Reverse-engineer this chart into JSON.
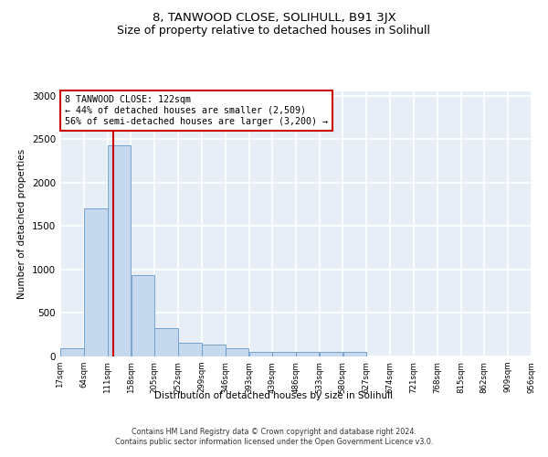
{
  "title": "8, TANWOOD CLOSE, SOLIHULL, B91 3JX",
  "subtitle": "Size of property relative to detached houses in Solihull",
  "xlabel": "Distribution of detached houses by size in Solihull",
  "ylabel": "Number of detached properties",
  "footer_line1": "Contains HM Land Registry data © Crown copyright and database right 2024.",
  "footer_line2": "Contains public sector information licensed under the Open Government Licence v3.0.",
  "bar_color": "#c5d8ee",
  "bar_edge_color": "#6699cc",
  "background_color": "#e8eef5",
  "grid_color": "#ffffff",
  "annotation_box_color": "#cc0000",
  "annotation_line1": "8 TANWOOD CLOSE: 122sqm",
  "annotation_line2": "← 44% of detached houses are smaller (2,509)",
  "annotation_line3": "56% of semi-detached houses are larger (3,200) →",
  "vline_x": 122,
  "vline_color": "#cc0000",
  "bin_edges": [
    17,
    64,
    111,
    158,
    205,
    252,
    299,
    346,
    393,
    439,
    486,
    533,
    580,
    627,
    674,
    721,
    768,
    815,
    862,
    909,
    956
  ],
  "bar_heights": [
    95,
    1700,
    2430,
    940,
    330,
    155,
    140,
    95,
    50,
    50,
    50,
    50,
    50,
    0,
    0,
    0,
    0,
    0,
    0,
    0
  ],
  "ylim": [
    0,
    3050
  ],
  "yticks": [
    0,
    500,
    1000,
    1500,
    2000,
    2500,
    3000
  ],
  "title_fontsize": 9.5,
  "subtitle_fontsize": 9,
  "tick_labels": [
    "17sqm",
    "64sqm",
    "111sqm",
    "158sqm",
    "205sqm",
    "252sqm",
    "299sqm",
    "346sqm",
    "393sqm",
    "439sqm",
    "486sqm",
    "533sqm",
    "580sqm",
    "627sqm",
    "674sqm",
    "721sqm",
    "768sqm",
    "815sqm",
    "862sqm",
    "909sqm",
    "956sqm"
  ]
}
